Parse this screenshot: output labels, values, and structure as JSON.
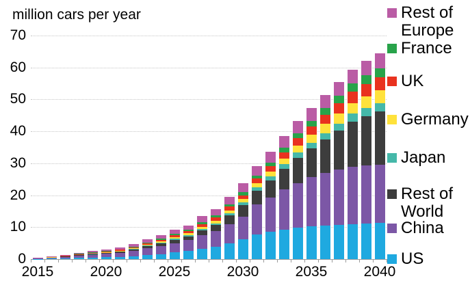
{
  "title": "million cars per year",
  "colors": {
    "us": "#1FA9E0",
    "china": "#7C57A6",
    "rest_of_world": "#3D3D3D",
    "japan": "#45B8A9",
    "germany": "#FFE23B",
    "uk": "#E9321F",
    "france": "#28A34A",
    "rest_of_europe": "#BA5CA5",
    "grid": "#C6C6C6",
    "axis": "#9B9B9B"
  },
  "chart_data": {
    "type": "bar",
    "stacked": true,
    "title": "million cars per year",
    "ylabel": "million cars per year",
    "xlabel": "",
    "ylim": [
      0,
      70
    ],
    "y_ticks": [
      0,
      10,
      20,
      30,
      40,
      50,
      60,
      70
    ],
    "grid": "horizontal-dotted",
    "legend_position": "right",
    "categories": [
      2015,
      2016,
      2017,
      2018,
      2019,
      2020,
      2021,
      2022,
      2023,
      2024,
      2025,
      2026,
      2027,
      2028,
      2029,
      2030,
      2031,
      2032,
      2033,
      2034,
      2035,
      2036,
      2037,
      2038,
      2039,
      2040
    ],
    "x_tick_labels": [
      "2015",
      "2020",
      "2025",
      "2030",
      "2035",
      "2040"
    ],
    "x_tick_label_indices": [
      0,
      5,
      10,
      15,
      20,
      25
    ],
    "series": [
      {
        "name": "US",
        "color": "#1FA9E0",
        "values": [
          0.1,
          0.15,
          0.25,
          0.35,
          0.45,
          0.55,
          0.7,
          0.95,
          1.3,
          1.6,
          2.1,
          2.5,
          3.2,
          3.9,
          5.0,
          6.3,
          7.8,
          8.6,
          9.3,
          9.8,
          10.2,
          10.5,
          10.8,
          11.0,
          11.2,
          11.3
        ]
      },
      {
        "name": "China",
        "color": "#7C57A6",
        "values": [
          0.15,
          0.3,
          0.45,
          0.7,
          0.9,
          1.1,
          1.3,
          1.6,
          2.1,
          2.5,
          2.9,
          3.4,
          4.2,
          4.9,
          6.0,
          7.0,
          9.3,
          10.7,
          12.5,
          14.0,
          15.5,
          16.5,
          17.3,
          17.8,
          18.1,
          18.3
        ]
      },
      {
        "name": "Rest of World",
        "color": "#3D3D3D",
        "values": [
          0.02,
          0.06,
          0.1,
          0.17,
          0.22,
          0.27,
          0.33,
          0.45,
          0.6,
          0.8,
          1.05,
          1.2,
          1.6,
          1.9,
          2.7,
          3.6,
          4.4,
          5.4,
          6.5,
          7.9,
          8.9,
          10.5,
          12.2,
          14.3,
          15.5,
          16.6
        ]
      },
      {
        "name": "Japan",
        "color": "#45B8A9",
        "values": [
          0.01,
          0.02,
          0.04,
          0.06,
          0.08,
          0.1,
          0.12,
          0.15,
          0.2,
          0.25,
          0.3,
          0.35,
          0.42,
          0.48,
          0.6,
          0.8,
          1.0,
          1.2,
          1.4,
          1.6,
          1.8,
          2.0,
          2.2,
          2.4,
          2.55,
          2.7
        ]
      },
      {
        "name": "Germany",
        "color": "#FFE23B",
        "values": [
          0.02,
          0.05,
          0.08,
          0.12,
          0.15,
          0.18,
          0.22,
          0.28,
          0.36,
          0.44,
          0.55,
          0.6,
          0.75,
          0.85,
          1.0,
          1.1,
          1.3,
          1.55,
          1.85,
          2.2,
          2.5,
          2.8,
          3.1,
          3.4,
          3.65,
          3.9
        ]
      },
      {
        "name": "UK",
        "color": "#E9321F",
        "values": [
          0.02,
          0.05,
          0.09,
          0.14,
          0.17,
          0.2,
          0.24,
          0.31,
          0.4,
          0.49,
          0.6,
          0.65,
          0.85,
          0.95,
          1.1,
          1.2,
          1.4,
          1.65,
          1.95,
          2.3,
          2.6,
          2.9,
          3.2,
          3.55,
          3.85,
          4.1
        ]
      },
      {
        "name": "France",
        "color": "#28A34A",
        "values": [
          0.02,
          0.04,
          0.07,
          0.1,
          0.13,
          0.15,
          0.18,
          0.23,
          0.29,
          0.36,
          0.45,
          0.5,
          0.6,
          0.7,
          0.8,
          0.9,
          1.0,
          1.2,
          1.4,
          1.6,
          1.8,
          2.05,
          2.3,
          2.55,
          2.75,
          2.9
        ]
      },
      {
        "name": "Rest of Europe",
        "color": "#BA5CA5",
        "values": [
          0.06,
          0.13,
          0.22,
          0.36,
          0.45,
          0.55,
          0.66,
          0.73,
          0.95,
          1.06,
          1.2,
          1.4,
          1.8,
          2.0,
          2.4,
          2.9,
          3.0,
          3.3,
          3.6,
          3.8,
          4.0,
          4.1,
          4.3,
          4.4,
          4.5,
          4.6
        ]
      }
    ],
    "legend_items": [
      {
        "label_lines": [
          "Rest of",
          "Europe"
        ],
        "series": "Rest of Europe",
        "color": "#BA5CA5"
      },
      {
        "label_lines": [
          "France"
        ],
        "series": "France",
        "color": "#28A34A"
      },
      {
        "label_lines": [
          "UK"
        ],
        "series": "UK",
        "color": "#E9321F"
      },
      {
        "label_lines": [
          "Germany"
        ],
        "series": "Germany",
        "color": "#FFE23B"
      },
      {
        "label_lines": [
          "Japan"
        ],
        "series": "Japan",
        "color": "#45B8A9"
      },
      {
        "label_lines": [
          "Rest of",
          "World"
        ],
        "series": "Rest of World",
        "color": "#3D3D3D"
      },
      {
        "label_lines": [
          "China"
        ],
        "series": "China",
        "color": "#7C57A6"
      },
      {
        "label_lines": [
          "US"
        ],
        "series": "US",
        "color": "#1FA9E0"
      }
    ]
  }
}
